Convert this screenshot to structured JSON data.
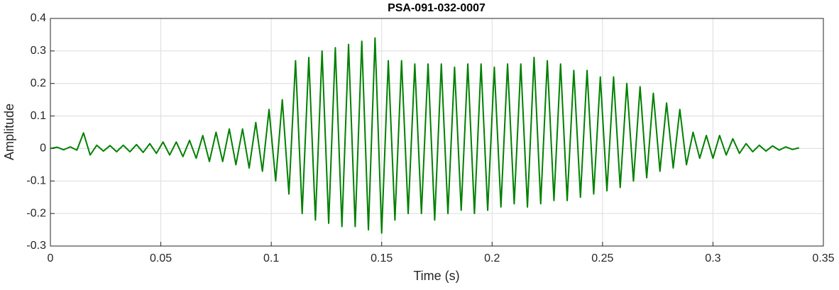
{
  "chart_data": {
    "type": "line",
    "title": "PSA-091-032-0007",
    "x_label": "Time (s)",
    "y_label": "Amplitude",
    "x": [
      0,
      0.003,
      0.006,
      0.009,
      0.012,
      0.015,
      0.018,
      0.021,
      0.024,
      0.027,
      0.03,
      0.033,
      0.036,
      0.039,
      0.042,
      0.045,
      0.048,
      0.051,
      0.054,
      0.057,
      0.06,
      0.063,
      0.066,
      0.069,
      0.072,
      0.075,
      0.078,
      0.081,
      0.084,
      0.087,
      0.09,
      0.093,
      0.096,
      0.099,
      0.102,
      0.105,
      0.108,
      0.111,
      0.114,
      0.117,
      0.12,
      0.123,
      0.126,
      0.129,
      0.132,
      0.135,
      0.138,
      0.141,
      0.144,
      0.147,
      0.15,
      0.153,
      0.156,
      0.159,
      0.162,
      0.165,
      0.168,
      0.171,
      0.174,
      0.177,
      0.18,
      0.183,
      0.186,
      0.189,
      0.192,
      0.195,
      0.198,
      0.201,
      0.204,
      0.207,
      0.21,
      0.213,
      0.216,
      0.219,
      0.222,
      0.225,
      0.228,
      0.231,
      0.234,
      0.237,
      0.24,
      0.243,
      0.246,
      0.249,
      0.252,
      0.255,
      0.258,
      0.261,
      0.264,
      0.267,
      0.27,
      0.273,
      0.276,
      0.279,
      0.282,
      0.285,
      0.288,
      0.291,
      0.294,
      0.297,
      0.3,
      0.303,
      0.306,
      0.309,
      0.312,
      0.315,
      0.318,
      0.321,
      0.324,
      0.327,
      0.33,
      0.333,
      0.336,
      0.339
    ],
    "series": [
      {
        "color": "#008000",
        "values": [
          0,
          0.004,
          -0.004,
          0.005,
          -0.005,
          0.048,
          -0.02,
          0.01,
          -0.008,
          0.009,
          -0.01,
          0.01,
          -0.01,
          0.012,
          -0.012,
          0.015,
          -0.015,
          0.02,
          -0.02,
          0.02,
          -0.025,
          0.025,
          -0.03,
          0.04,
          -0.04,
          0.05,
          -0.04,
          0.06,
          -0.05,
          0.06,
          -0.06,
          0.08,
          -0.07,
          0.12,
          -0.1,
          0.15,
          -0.14,
          0.27,
          -0.2,
          0.28,
          -0.22,
          0.3,
          -0.23,
          0.31,
          -0.24,
          0.32,
          -0.24,
          0.33,
          -0.25,
          0.34,
          -0.26,
          0.27,
          -0.22,
          0.27,
          -0.2,
          0.26,
          -0.2,
          0.26,
          -0.22,
          0.26,
          -0.2,
          0.25,
          -0.19,
          0.26,
          -0.2,
          0.26,
          -0.19,
          0.25,
          -0.18,
          0.26,
          -0.17,
          0.26,
          -0.18,
          0.28,
          -0.17,
          0.27,
          -0.16,
          0.26,
          -0.16,
          0.24,
          -0.15,
          0.24,
          -0.14,
          0.22,
          -0.13,
          0.22,
          -0.12,
          0.2,
          -0.1,
          0.19,
          -0.09,
          0.17,
          -0.07,
          0.14,
          -0.06,
          0.12,
          -0.05,
          0.05,
          -0.03,
          0.04,
          -0.03,
          0.04,
          -0.02,
          0.03,
          -0.015,
          0.015,
          -0.01,
          0.01,
          -0.008,
          0.008,
          -0.005,
          0.005,
          -0.003,
          0.002
        ]
      }
    ],
    "xlim": [
      0,
      0.35
    ],
    "xticks": [
      0,
      0.05,
      0.1,
      0.15,
      0.2,
      0.25,
      0.3,
      0.35
    ],
    "ylim": [
      -0.3,
      0.4
    ],
    "yticks": [
      -0.3,
      -0.2,
      -0.1,
      0,
      0.1,
      0.2,
      0.3,
      0.4
    ],
    "grid": true
  }
}
